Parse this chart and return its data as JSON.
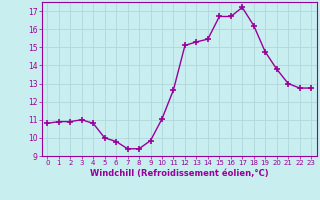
{
  "x": [
    0,
    1,
    2,
    3,
    4,
    5,
    6,
    7,
    8,
    9,
    10,
    11,
    12,
    13,
    14,
    15,
    16,
    17,
    18,
    19,
    20,
    21,
    22,
    23
  ],
  "y": [
    10.8,
    10.9,
    10.9,
    11.0,
    10.8,
    10.0,
    9.8,
    9.4,
    9.4,
    9.85,
    11.05,
    12.65,
    15.1,
    15.3,
    15.45,
    16.7,
    16.7,
    17.2,
    16.2,
    14.75,
    13.8,
    13.0,
    12.75,
    12.75
  ],
  "line_color": "#990099",
  "marker": "+",
  "markersize": 4,
  "linewidth": 1.0,
  "background_color": "#c8eef0",
  "grid_color": "#b0d8dc",
  "xlabel": "Windchill (Refroidissement éolien,°C)",
  "xlabel_color": "#990099",
  "tick_color": "#990099",
  "ylim": [
    9,
    17.5
  ],
  "xlim": [
    -0.5,
    23.5
  ],
  "yticks": [
    9,
    10,
    11,
    12,
    13,
    14,
    15,
    16,
    17
  ],
  "xticks": [
    0,
    1,
    2,
    3,
    4,
    5,
    6,
    7,
    8,
    9,
    10,
    11,
    12,
    13,
    14,
    15,
    16,
    17,
    18,
    19,
    20,
    21,
    22,
    23
  ]
}
